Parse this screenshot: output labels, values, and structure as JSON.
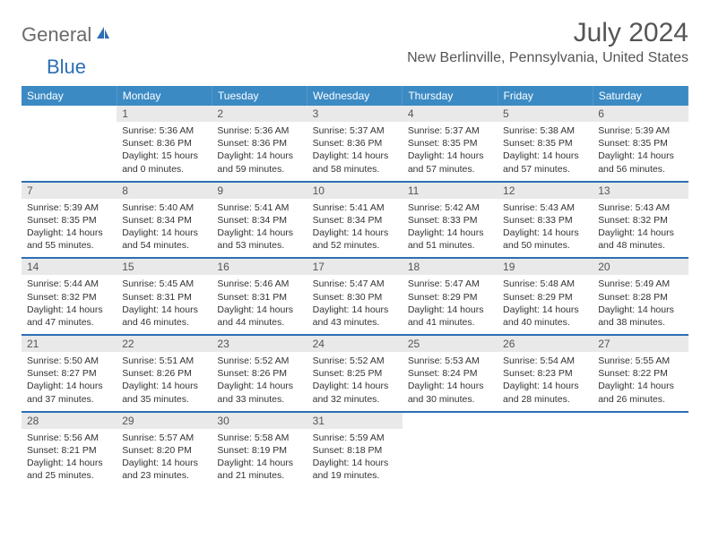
{
  "logo": {
    "text1": "General",
    "text2": "Blue"
  },
  "title": "July 2024",
  "location": "New Berlinville, Pennsylvania, United States",
  "colors": {
    "header_bg": "#3b8ac4",
    "header_text": "#ffffff",
    "daynum_bg": "#e9e9e9",
    "daynum_text": "#555555",
    "row_divider": "#2d6fb3",
    "body_text": "#333333",
    "title_text": "#555555",
    "logo_gray": "#6b6b6b",
    "logo_blue": "#2d6fb3"
  },
  "weekdays": [
    "Sunday",
    "Monday",
    "Tuesday",
    "Wednesday",
    "Thursday",
    "Friday",
    "Saturday"
  ],
  "weeks": [
    [
      null,
      {
        "n": "1",
        "sr": "Sunrise: 5:36 AM",
        "ss": "Sunset: 8:36 PM",
        "d1": "Daylight: 15 hours",
        "d2": "and 0 minutes."
      },
      {
        "n": "2",
        "sr": "Sunrise: 5:36 AM",
        "ss": "Sunset: 8:36 PM",
        "d1": "Daylight: 14 hours",
        "d2": "and 59 minutes."
      },
      {
        "n": "3",
        "sr": "Sunrise: 5:37 AM",
        "ss": "Sunset: 8:36 PM",
        "d1": "Daylight: 14 hours",
        "d2": "and 58 minutes."
      },
      {
        "n": "4",
        "sr": "Sunrise: 5:37 AM",
        "ss": "Sunset: 8:35 PM",
        "d1": "Daylight: 14 hours",
        "d2": "and 57 minutes."
      },
      {
        "n": "5",
        "sr": "Sunrise: 5:38 AM",
        "ss": "Sunset: 8:35 PM",
        "d1": "Daylight: 14 hours",
        "d2": "and 57 minutes."
      },
      {
        "n": "6",
        "sr": "Sunrise: 5:39 AM",
        "ss": "Sunset: 8:35 PM",
        "d1": "Daylight: 14 hours",
        "d2": "and 56 minutes."
      }
    ],
    [
      {
        "n": "7",
        "sr": "Sunrise: 5:39 AM",
        "ss": "Sunset: 8:35 PM",
        "d1": "Daylight: 14 hours",
        "d2": "and 55 minutes."
      },
      {
        "n": "8",
        "sr": "Sunrise: 5:40 AM",
        "ss": "Sunset: 8:34 PM",
        "d1": "Daylight: 14 hours",
        "d2": "and 54 minutes."
      },
      {
        "n": "9",
        "sr": "Sunrise: 5:41 AM",
        "ss": "Sunset: 8:34 PM",
        "d1": "Daylight: 14 hours",
        "d2": "and 53 minutes."
      },
      {
        "n": "10",
        "sr": "Sunrise: 5:41 AM",
        "ss": "Sunset: 8:34 PM",
        "d1": "Daylight: 14 hours",
        "d2": "and 52 minutes."
      },
      {
        "n": "11",
        "sr": "Sunrise: 5:42 AM",
        "ss": "Sunset: 8:33 PM",
        "d1": "Daylight: 14 hours",
        "d2": "and 51 minutes."
      },
      {
        "n": "12",
        "sr": "Sunrise: 5:43 AM",
        "ss": "Sunset: 8:33 PM",
        "d1": "Daylight: 14 hours",
        "d2": "and 50 minutes."
      },
      {
        "n": "13",
        "sr": "Sunrise: 5:43 AM",
        "ss": "Sunset: 8:32 PM",
        "d1": "Daylight: 14 hours",
        "d2": "and 48 minutes."
      }
    ],
    [
      {
        "n": "14",
        "sr": "Sunrise: 5:44 AM",
        "ss": "Sunset: 8:32 PM",
        "d1": "Daylight: 14 hours",
        "d2": "and 47 minutes."
      },
      {
        "n": "15",
        "sr": "Sunrise: 5:45 AM",
        "ss": "Sunset: 8:31 PM",
        "d1": "Daylight: 14 hours",
        "d2": "and 46 minutes."
      },
      {
        "n": "16",
        "sr": "Sunrise: 5:46 AM",
        "ss": "Sunset: 8:31 PM",
        "d1": "Daylight: 14 hours",
        "d2": "and 44 minutes."
      },
      {
        "n": "17",
        "sr": "Sunrise: 5:47 AM",
        "ss": "Sunset: 8:30 PM",
        "d1": "Daylight: 14 hours",
        "d2": "and 43 minutes."
      },
      {
        "n": "18",
        "sr": "Sunrise: 5:47 AM",
        "ss": "Sunset: 8:29 PM",
        "d1": "Daylight: 14 hours",
        "d2": "and 41 minutes."
      },
      {
        "n": "19",
        "sr": "Sunrise: 5:48 AM",
        "ss": "Sunset: 8:29 PM",
        "d1": "Daylight: 14 hours",
        "d2": "and 40 minutes."
      },
      {
        "n": "20",
        "sr": "Sunrise: 5:49 AM",
        "ss": "Sunset: 8:28 PM",
        "d1": "Daylight: 14 hours",
        "d2": "and 38 minutes."
      }
    ],
    [
      {
        "n": "21",
        "sr": "Sunrise: 5:50 AM",
        "ss": "Sunset: 8:27 PM",
        "d1": "Daylight: 14 hours",
        "d2": "and 37 minutes."
      },
      {
        "n": "22",
        "sr": "Sunrise: 5:51 AM",
        "ss": "Sunset: 8:26 PM",
        "d1": "Daylight: 14 hours",
        "d2": "and 35 minutes."
      },
      {
        "n": "23",
        "sr": "Sunrise: 5:52 AM",
        "ss": "Sunset: 8:26 PM",
        "d1": "Daylight: 14 hours",
        "d2": "and 33 minutes."
      },
      {
        "n": "24",
        "sr": "Sunrise: 5:52 AM",
        "ss": "Sunset: 8:25 PM",
        "d1": "Daylight: 14 hours",
        "d2": "and 32 minutes."
      },
      {
        "n": "25",
        "sr": "Sunrise: 5:53 AM",
        "ss": "Sunset: 8:24 PM",
        "d1": "Daylight: 14 hours",
        "d2": "and 30 minutes."
      },
      {
        "n": "26",
        "sr": "Sunrise: 5:54 AM",
        "ss": "Sunset: 8:23 PM",
        "d1": "Daylight: 14 hours",
        "d2": "and 28 minutes."
      },
      {
        "n": "27",
        "sr": "Sunrise: 5:55 AM",
        "ss": "Sunset: 8:22 PM",
        "d1": "Daylight: 14 hours",
        "d2": "and 26 minutes."
      }
    ],
    [
      {
        "n": "28",
        "sr": "Sunrise: 5:56 AM",
        "ss": "Sunset: 8:21 PM",
        "d1": "Daylight: 14 hours",
        "d2": "and 25 minutes."
      },
      {
        "n": "29",
        "sr": "Sunrise: 5:57 AM",
        "ss": "Sunset: 8:20 PM",
        "d1": "Daylight: 14 hours",
        "d2": "and 23 minutes."
      },
      {
        "n": "30",
        "sr": "Sunrise: 5:58 AM",
        "ss": "Sunset: 8:19 PM",
        "d1": "Daylight: 14 hours",
        "d2": "and 21 minutes."
      },
      {
        "n": "31",
        "sr": "Sunrise: 5:59 AM",
        "ss": "Sunset: 8:18 PM",
        "d1": "Daylight: 14 hours",
        "d2": "and 19 minutes."
      },
      null,
      null,
      null
    ]
  ]
}
